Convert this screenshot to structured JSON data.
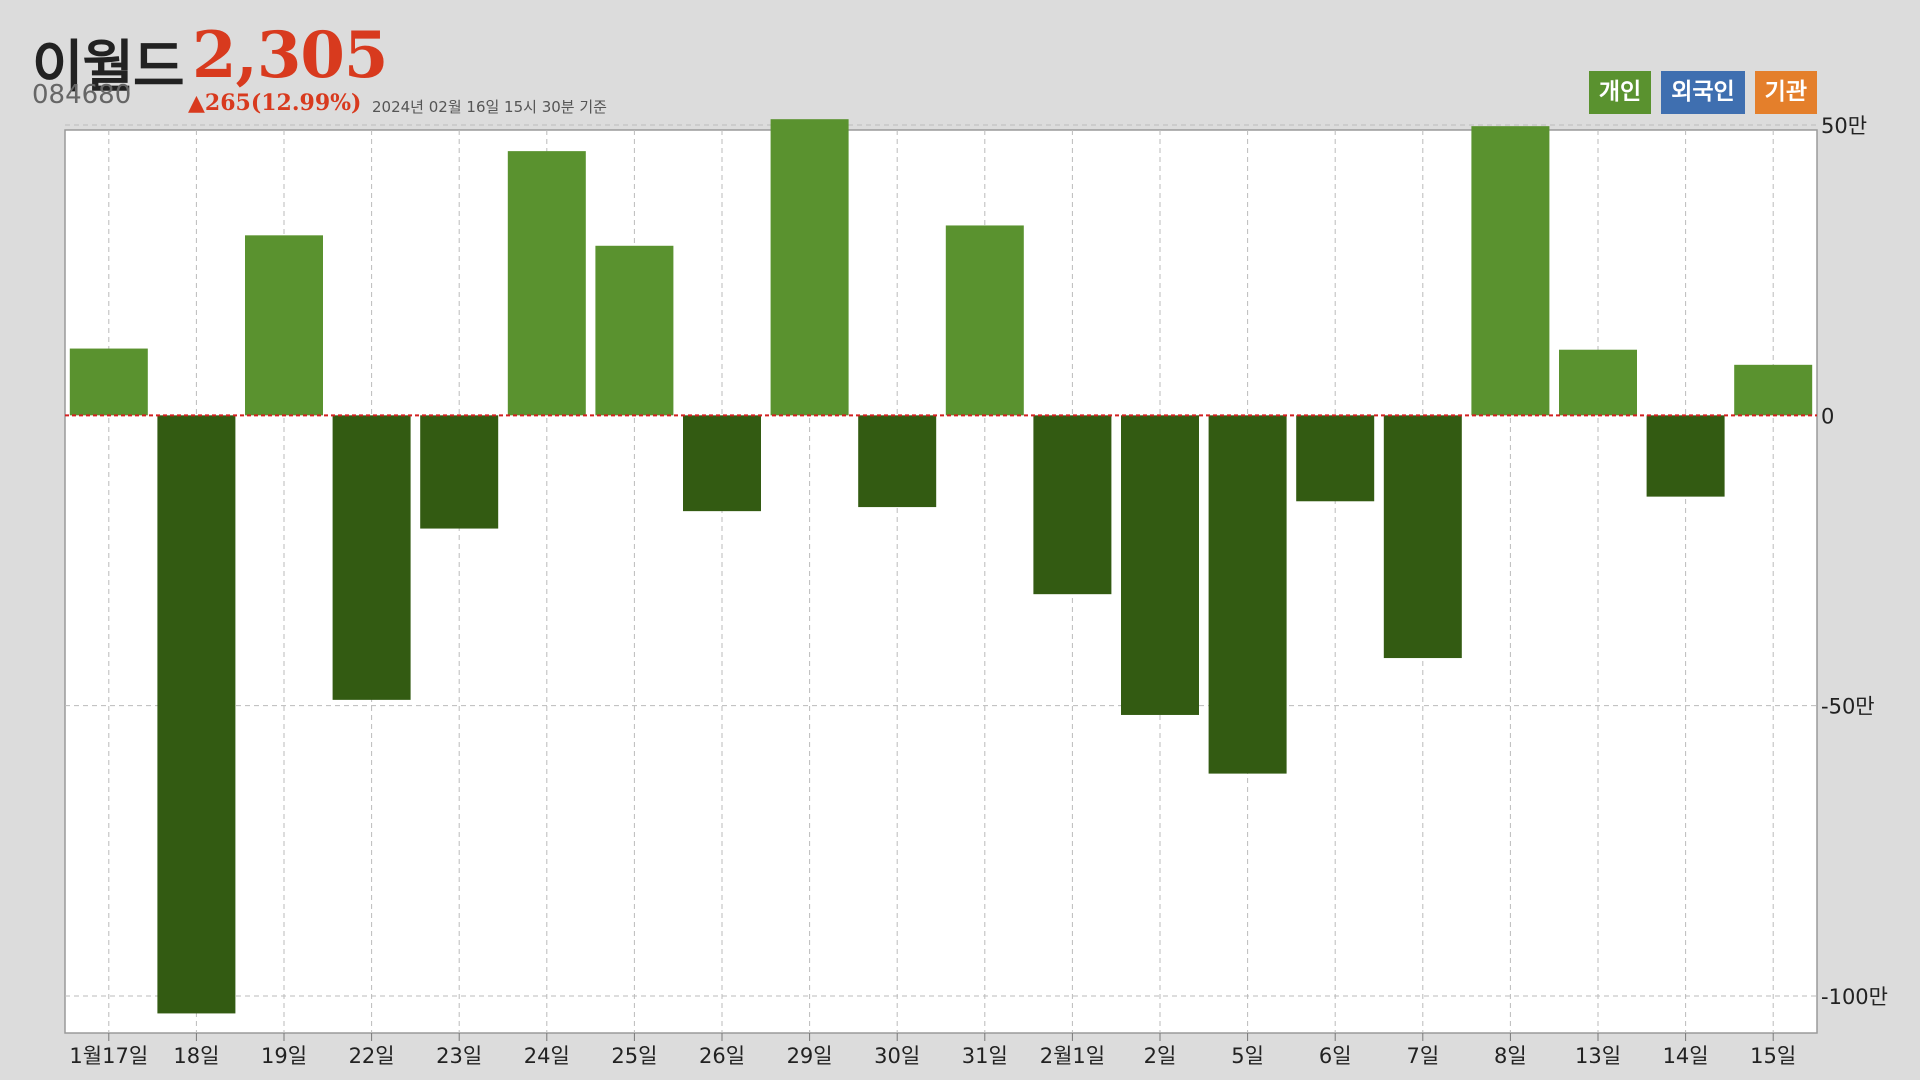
{
  "stock": {
    "name": "이월드",
    "price": "2,305",
    "code": "084680",
    "change": "▲265(12.99%)",
    "timestamp": "2024년 02월 16일 15시 30분 기준"
  },
  "legend": [
    {
      "label": "개인",
      "color": "#5a922f"
    },
    {
      "label": "외국인",
      "color": "#3f6fb0"
    },
    {
      "label": "기관",
      "color": "#e47f2b"
    }
  ],
  "colors": {
    "positive_bar": "#5a922f",
    "negative_bar": "#335b12",
    "zero_line": "#d42020",
    "grid": "#bbbbbb",
    "price": "#d83a1e"
  },
  "chart_data": {
    "type": "bar",
    "series_name": "개인",
    "categories": [
      "1월17일",
      "18일",
      "19일",
      "22일",
      "23일",
      "24일",
      "25일",
      "26일",
      "29일",
      "30일",
      "31일",
      "2월1일",
      "2일",
      "5일",
      "6일",
      "7일",
      "8일",
      "13일",
      "14일",
      "15일"
    ],
    "values": [
      115000,
      -1030000,
      310000,
      -490000,
      -195000,
      455000,
      292000,
      -165000,
      510000,
      -158000,
      327000,
      -308000,
      -516000,
      -617000,
      -148000,
      -418000,
      498000,
      113000,
      -140000,
      87000
    ],
    "y_ticks": [
      500000,
      0,
      -500000,
      -1000000
    ],
    "y_tick_labels": [
      "50만",
      "0",
      "-50만",
      "-100만"
    ],
    "ylim": [
      -1050000,
      550000
    ],
    "grid": true,
    "legend_position": "top-right"
  }
}
